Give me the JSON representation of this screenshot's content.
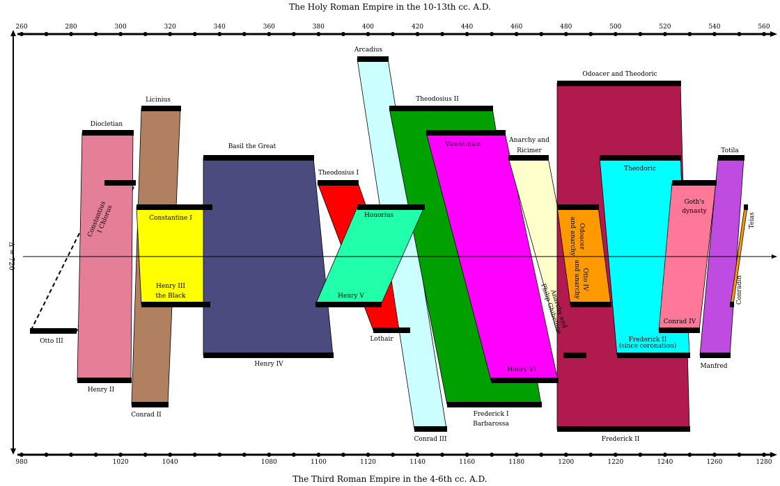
{
  "title_top": "The Holy Roman Empire in the 10-13th cc. A.D.",
  "title_bottom": "The Third Roman Empire in the 4-6th cc. A.D.",
  "shift_label": "Δ = 720",
  "chart_data": {
    "type": "parallel-timeline",
    "top_axis": {
      "from": 260,
      "to": 560,
      "label_step": 20,
      "minor_step": 10
    },
    "bottom_axis": {
      "from": 980,
      "to": 1280,
      "ticks": [
        980,
        1020,
        1040,
        1080,
        1100,
        1120,
        1140,
        1160,
        1180,
        1200,
        1220,
        1240,
        1260,
        1280
      ]
    },
    "shift": 720,
    "colors": {
      "diocletian": "#e57f97",
      "licinius": "#b08060",
      "constantine": "#ffff00",
      "basil": "#4b4b7f",
      "theodosius1": "#ff0000",
      "arcadius": "#ccffff",
      "honorius": "#22ffaa",
      "theodosius2": "#00a000",
      "valentinian": "#ff00ff",
      "ricimer": "#ffffcc",
      "odoacer": "#b01a4f",
      "odoacer_anarchy": "#ff9900",
      "theodoric": "#00ffff",
      "goths": "#ff7799",
      "totila": "#c04be0",
      "teias": "#ff9900"
    },
    "pairs": [
      {
        "top": "Diocletian",
        "bottom": "Henry II"
      },
      {
        "top": "Constantius I Chlorus",
        "bottom": "Otto III"
      },
      {
        "top": "Licinius",
        "bottom": "Conrad II"
      },
      {
        "top": "Constantine I",
        "bottom": "Henry III the Black"
      },
      {
        "top": "Basil the Great",
        "bottom": "Henry IV"
      },
      {
        "top": "Theodosius I",
        "bottom": "Lothair"
      },
      {
        "top": "Honorius",
        "bottom": "Henry V"
      },
      {
        "top": "Arcadius",
        "bottom": "Conrad III"
      },
      {
        "top": "Theodosius II",
        "bottom": "Frederick I Barbarossa"
      },
      {
        "top": "Valentinian",
        "bottom": "Henry VI"
      },
      {
        "top": "Anarchy and Ricimer",
        "bottom": "Anarchy and Philip Ghibelline"
      },
      {
        "top": "Odoacer and Theodoric",
        "bottom": "Frederick II"
      },
      {
        "top": "Odoacer and anarchy",
        "bottom": "Otto IV and anarchy"
      },
      {
        "top": "Theodoric",
        "bottom": "Frederick II (since coronation)"
      },
      {
        "top": "Goth's dynasty",
        "bottom": "Conrad IV"
      },
      {
        "top": "Totila",
        "bottom": "Manfred"
      },
      {
        "top": "Teias",
        "bottom": "Conradin"
      }
    ]
  },
  "labels": {
    "diocletian": "Diocletian",
    "constantius_1": "Constantius",
    "constantius_2": "I Chlorus",
    "licinius": "Licinius",
    "constantine": "Constantine I",
    "henry3_1": "Henry III",
    "henry3_2": "the Black",
    "basil": "Basil the Great",
    "theodosius1": "Theodosius I",
    "arcadius": "Arcadius",
    "honorius": "Honorius",
    "henry5": "Henry V",
    "lothair": "Lothair",
    "theodosius2": "Theodosius II",
    "valentinian": "Valentinian",
    "henry6": "Henry VI",
    "ricimer_1": "Anarchy and",
    "ricimer_2": "Ricimer",
    "philip_1": "Anarchy and",
    "philip_2": "Philip Ghibelline",
    "odoacer_theodoric": "Odoacer and Theodoric",
    "odoacer_anarchy_1": "Odoacer",
    "odoacer_anarchy_2": "and anarchy",
    "otto4_1": "Otto IV",
    "otto4_2": "and anarchy",
    "theodoric": "Theodoric",
    "fred2_coron_1": "Frederick II",
    "fred2_coron_2": "(since coronation)",
    "goths_1": "Goth's",
    "goths_2": "dynasty",
    "conrad4": "Conrad IV",
    "totila": "Totila",
    "teias": "Teias",
    "conradin": "Conradin",
    "manfred": "Manfred",
    "otto3": "Otto III",
    "henry2": "Henry II",
    "conrad2": "Conrad II",
    "henry4": "Henry IV",
    "conrad3": "Conrad III",
    "barbarossa_1": "Frederick I",
    "barbarossa_2": "Barbarossa",
    "fred2": "Frederick II"
  }
}
